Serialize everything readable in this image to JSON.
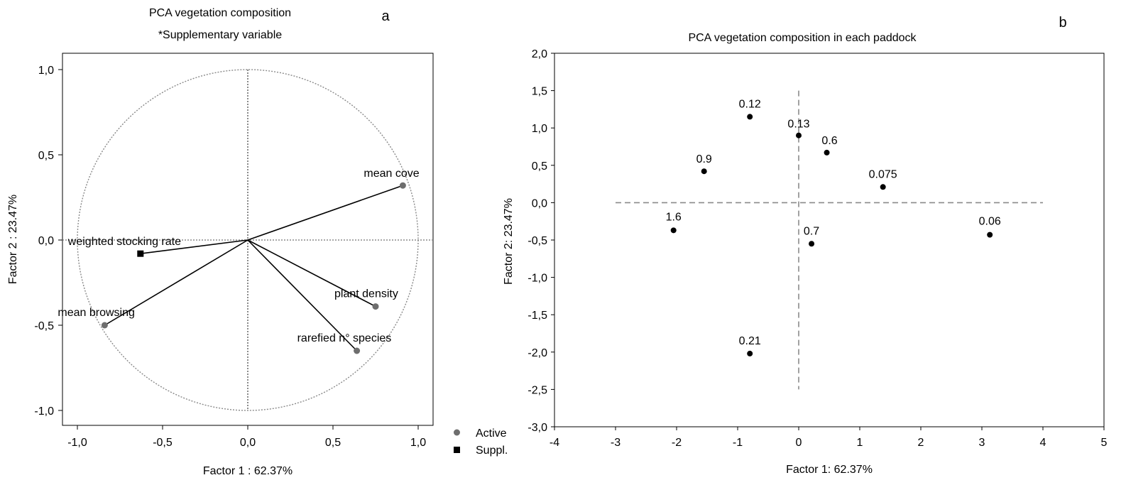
{
  "chart_data": [
    {
      "type": "scatter",
      "panel_letter": "a",
      "title": "PCA vegetation composition",
      "subtitle": "*Supplementary variable",
      "xlabel": "Factor 1 : 62.37%",
      "ylabel": "Factor 2 : 23.47%",
      "xlim": [
        -1.1,
        1.1
      ],
      "ylim": [
        -1.1,
        1.1
      ],
      "x_ticks": [
        "-1,0",
        "-0,5",
        "0,0",
        "0,5",
        "1,0"
      ],
      "y_ticks": [
        "1,0",
        "0,5",
        "0,0",
        "-0,5",
        "-1,0"
      ],
      "unit_circle": true,
      "grid": false,
      "legend_placement": "bottom-right, outside",
      "legend": [
        {
          "label": "Active",
          "marker": "circle",
          "color": "#6e6e6e"
        },
        {
          "label": "Suppl.",
          "marker": "square",
          "color": "#000000"
        }
      ],
      "vectors": [
        {
          "label": "mean cove",
          "x": 0.91,
          "y": 0.32,
          "group": "Active"
        },
        {
          "label": "weighted stocking rate",
          "x": -0.63,
          "y": -0.08,
          "group": "Suppl."
        },
        {
          "label": "plant density",
          "x": 0.75,
          "y": -0.39,
          "group": "Active"
        },
        {
          "label": "rarefied n° species",
          "x": 0.64,
          "y": -0.65,
          "group": "Active"
        },
        {
          "label": "mean browsing",
          "x": -0.84,
          "y": -0.5,
          "group": "Active"
        }
      ]
    },
    {
      "type": "scatter",
      "panel_letter": "b",
      "title": "PCA vegetation composition in each paddock",
      "xlabel": "Factor 1: 62.37%",
      "ylabel": "Factor 2: 23.47%",
      "xlim": [
        -4,
        5
      ],
      "ylim": [
        -3,
        2
      ],
      "x_ticks": [
        "-4",
        "-3",
        "-2",
        "-1",
        "0",
        "1",
        "2",
        "3",
        "4",
        "5"
      ],
      "y_ticks": [
        "2,0",
        "1,5",
        "1,0",
        "0,5",
        "0,0",
        "-0,5",
        "-1,0",
        "-1,5",
        "-2,0",
        "-2,5",
        "-3,0"
      ],
      "grid": false,
      "points": [
        {
          "label": "0.12",
          "x": -0.8,
          "y": 1.15
        },
        {
          "label": "0.13",
          "x": 0.0,
          "y": 0.9
        },
        {
          "label": "0.6",
          "x": 0.46,
          "y": 0.67
        },
        {
          "label": "0.9",
          "x": -1.55,
          "y": 0.42
        },
        {
          "label": "0.075",
          "x": 1.38,
          "y": 0.21
        },
        {
          "label": "1.6",
          "x": -2.05,
          "y": -0.37
        },
        {
          "label": "0.7",
          "x": 0.21,
          "y": -0.55
        },
        {
          "label": "0.06",
          "x": 3.13,
          "y": -0.43
        },
        {
          "label": "0.21",
          "x": -0.8,
          "y": -2.02
        }
      ]
    }
  ]
}
